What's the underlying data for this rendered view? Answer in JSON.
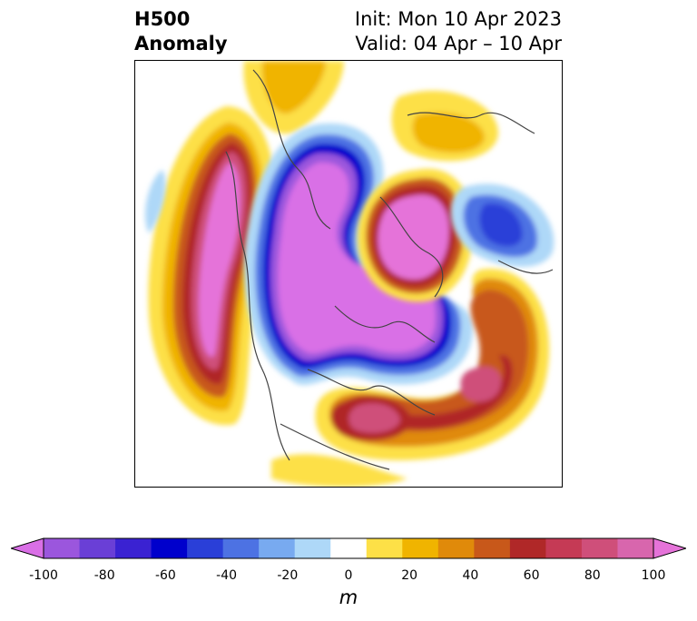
{
  "title": {
    "left_line1": "H500",
    "left_line2": "Anomaly",
    "right_line1": "Init: Mon 10 Apr 2023",
    "right_line2": "Valid: 04 Apr – 10 Apr"
  },
  "colorbar": {
    "units": "m",
    "range": [
      -100,
      100
    ],
    "interval": 10,
    "tick_labels": [
      "-100",
      "-80",
      "-60",
      "-40",
      "-20",
      "0",
      "20",
      "40",
      "60",
      "80",
      "100"
    ],
    "colors": [
      "#d96fe6",
      "#9b56dd",
      "#6a3fd6",
      "#3a22d2",
      "#0000cc",
      "#2a3fd8",
      "#4d72e3",
      "#78aaf0",
      "#aed8f8",
      "#ffffff",
      "#fde047",
      "#f0b400",
      "#e08a0a",
      "#c8581a",
      "#b02828",
      "#c53a55",
      "#cf4f7a",
      "#d866ad",
      "#e573d9"
    ]
  },
  "map": {
    "projection": "north-polar-stereographic",
    "features": {
      "ridge_alaska_pacific": "positive",
      "trough_canada_hudson": "negative",
      "ridge_greenland": "positive",
      "trough_north_atlantic": "negative",
      "ridge_eastern_us": "positive",
      "trough_scandinavia": "negative",
      "ridge_siberia": "positive"
    }
  }
}
